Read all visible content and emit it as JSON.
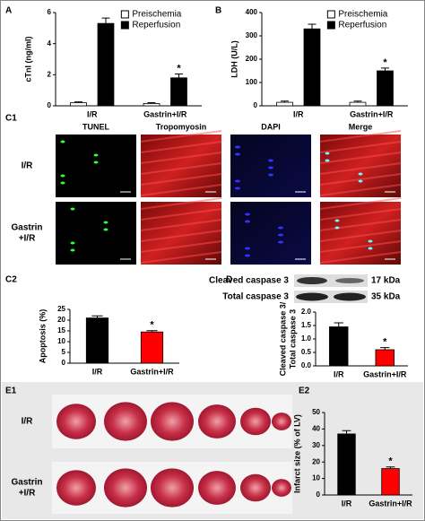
{
  "panels": {
    "a": "A",
    "b": "B",
    "c1": "C1",
    "c2": "C2",
    "d": "D",
    "e1": "E1",
    "e2": "E2"
  },
  "c1": {
    "columns": [
      "TUNEL",
      "Tropomyosin",
      "DAPI",
      "Merge"
    ],
    "rows": [
      [
        "I/R"
      ],
      [
        "Gastrin",
        "+I/R"
      ]
    ]
  },
  "blot": {
    "rows": [
      {
        "label": "Cleaved caspase 3",
        "size": "17 kDa"
      },
      {
        "label": "Total caspase 3",
        "size": "35 kDa"
      }
    ]
  },
  "e1": {
    "rows": [
      [
        "I/R"
      ],
      [
        "Gastrin",
        "+I/R"
      ]
    ]
  },
  "chart_data": [
    {
      "type": "bar",
      "ylabel": [
        "cTnI (ng/ml)"
      ],
      "categories": [
        "I/R",
        "Gastrin+I/R"
      ],
      "series": [
        {
          "name": "Preischemia",
          "color": "#ffffff",
          "values": [
            0.2,
            0.15
          ],
          "errors": [
            0.05,
            0.05
          ]
        },
        {
          "name": "Reperfusion",
          "color": "#000000",
          "values": [
            5.3,
            1.8
          ],
          "errors": [
            0.35,
            0.25
          ]
        }
      ],
      "ylim": [
        0,
        6
      ],
      "yticks": [
        0,
        2,
        4,
        6
      ],
      "legend": "upper right",
      "annotation": "*"
    },
    {
      "type": "bar",
      "ylabel": [
        "LDH (U/L)"
      ],
      "categories": [
        "I/R",
        "Gastrin+I/R"
      ],
      "series": [
        {
          "name": "Preischemia",
          "color": "#ffffff",
          "values": [
            15,
            15
          ],
          "errors": [
            5,
            5
          ]
        },
        {
          "name": "Reperfusion",
          "color": "#000000",
          "values": [
            330,
            150
          ],
          "errors": [
            20,
            12
          ]
        }
      ],
      "ylim": [
        0,
        400
      ],
      "yticks": [
        0,
        100,
        200,
        300,
        400
      ],
      "legend": "upper right",
      "annotation": "*"
    },
    {
      "type": "bar",
      "ylabel": [
        "Apoptosis (%)"
      ],
      "categories": [
        "I/R",
        "Gastrin+I/R"
      ],
      "series": [
        {
          "colors": [
            "#000000",
            "#ff0000"
          ],
          "values": [
            21,
            14.5
          ],
          "errors": [
            1,
            0.6
          ]
        }
      ],
      "ylim": [
        0,
        25
      ],
      "yticks": [
        0,
        5,
        10,
        15,
        20,
        25
      ],
      "annotation": "*"
    },
    {
      "type": "bar",
      "ylabel": [
        "Cleaved caspase 3/",
        "Total caspase 3"
      ],
      "categories": [
        "I/R",
        "Gastrin+I/R"
      ],
      "series": [
        {
          "colors": [
            "#000000",
            "#ff0000"
          ],
          "values": [
            1.45,
            0.6
          ],
          "errors": [
            0.15,
            0.08
          ]
        }
      ],
      "ylim": [
        0,
        2
      ],
      "yticks": [
        {
          "value": 0,
          "label": "0.0"
        },
        {
          "value": 0.5,
          "label": "0.5"
        },
        {
          "value": 1,
          "label": "1.0"
        },
        {
          "value": 1.5,
          "label": "1.5"
        },
        {
          "value": 2,
          "label": "2.0"
        }
      ],
      "annotation": "*"
    },
    {
      "type": "bar",
      "ylabel": [
        "Infarct size (% of LV)"
      ],
      "categories": [
        "I/R",
        "Gastrin+I/R"
      ],
      "series": [
        {
          "colors": [
            "#000000",
            "#ff0000"
          ],
          "values": [
            37,
            16
          ],
          "errors": [
            2,
            1
          ]
        }
      ],
      "ylim": [
        0,
        50
      ],
      "yticks": [
        0,
        10,
        20,
        30,
        40,
        50
      ],
      "annotation": "*"
    }
  ]
}
